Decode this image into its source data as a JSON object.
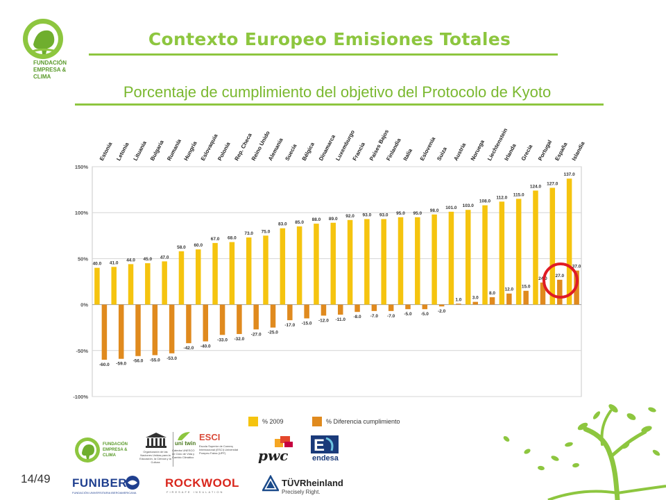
{
  "header": {
    "title": "Contexto Europeo Emisiones Totales",
    "subtitle": "Porcentaje de cumplimiento del objetivo del Protocolo de Kyoto",
    "logo_lines": [
      "FUNDACIÓN",
      "EMPRESA &",
      "CLIMA"
    ]
  },
  "page_number": "14/49",
  "colors": {
    "accent_green": "#8dc63f",
    "series_2009": "#f5c40f",
    "series_diff": "#e08a1e",
    "highlight_circle": "#e01b24"
  },
  "chart_data": {
    "type": "bar",
    "categories": [
      "Estonia",
      "Letonia",
      "Lituania",
      "Bulgaria",
      "Rumanía",
      "Hungría",
      "Eslovaquia",
      "Polonia",
      "Rep. Checa",
      "Reino Unido",
      "Alemania",
      "Suecia",
      "Bélgica",
      "Dinamarca",
      "Luxemburgo",
      "Francia",
      "Países Bajos",
      "Finlandia",
      "Italia",
      "Eslovenia",
      "Suiza",
      "Austria",
      "Noruega",
      "Liechtenstein",
      "Irlanda",
      "Grecia",
      "Portugal",
      "España",
      "Islandia"
    ],
    "series": [
      {
        "name": "% 2009",
        "values": [
          40.0,
          41.0,
          44.0,
          45.0,
          47.0,
          58.0,
          60.0,
          67.0,
          68.0,
          73.0,
          75.0,
          83.0,
          85.0,
          88.0,
          89.0,
          92.0,
          93.0,
          93.0,
          95.0,
          95.0,
          98.0,
          101.0,
          103.0,
          108.0,
          112.0,
          115.0,
          124.0,
          127.0,
          137.0
        ]
      },
      {
        "name": "% Diferencia cumplimiento",
        "values": [
          -60.0,
          -59.0,
          -56.0,
          -55.0,
          -53.0,
          -42.0,
          -40.0,
          -33.0,
          -32.0,
          -27.0,
          -25.0,
          -17.0,
          -15.0,
          -12.0,
          -11.0,
          -8.0,
          -7.0,
          -7.0,
          -5.0,
          -5.0,
          -2.0,
          1.0,
          3.0,
          8.0,
          12.0,
          15.0,
          24.0,
          27.0,
          37.0
        ]
      }
    ],
    "yticks": [
      "150%",
      "100%",
      "50%",
      "0%",
      "-50%",
      "-100%"
    ],
    "ylim": [
      -100,
      150
    ],
    "grid": true,
    "legend_position": "bottom",
    "highlighted_category": "España"
  },
  "sponsors": {
    "fec_lines": [
      "FUNDACIÓN",
      "EMPRESA &",
      "CLIMA"
    ],
    "unesco_text": "Organización de las Naciones Unidas para la Educación, la Ciencia y la Cultura",
    "unitwin_name": "uni twin",
    "unitwin_text": "Cátedra UNESCO de Ciclo de Vida y Cambio Climático",
    "esci_name": "ESCI",
    "esci_text": "Escola Superior de Comerç Internacional (ESCI) Universitat Pompeu Fabra (UPF)",
    "pwc": "pwc",
    "endesa": "endesa",
    "funiber": "FUNIBER",
    "funiber_sub": "FUNDACIÓN UNIVERSITARIA IBEROAMERICANA",
    "rockwool": "ROCKWOOL",
    "rockwool_sub": "FIRESAFE INSULATION",
    "tuv": "TÜVRheinland",
    "tuv_sub": "Precisely Right."
  }
}
